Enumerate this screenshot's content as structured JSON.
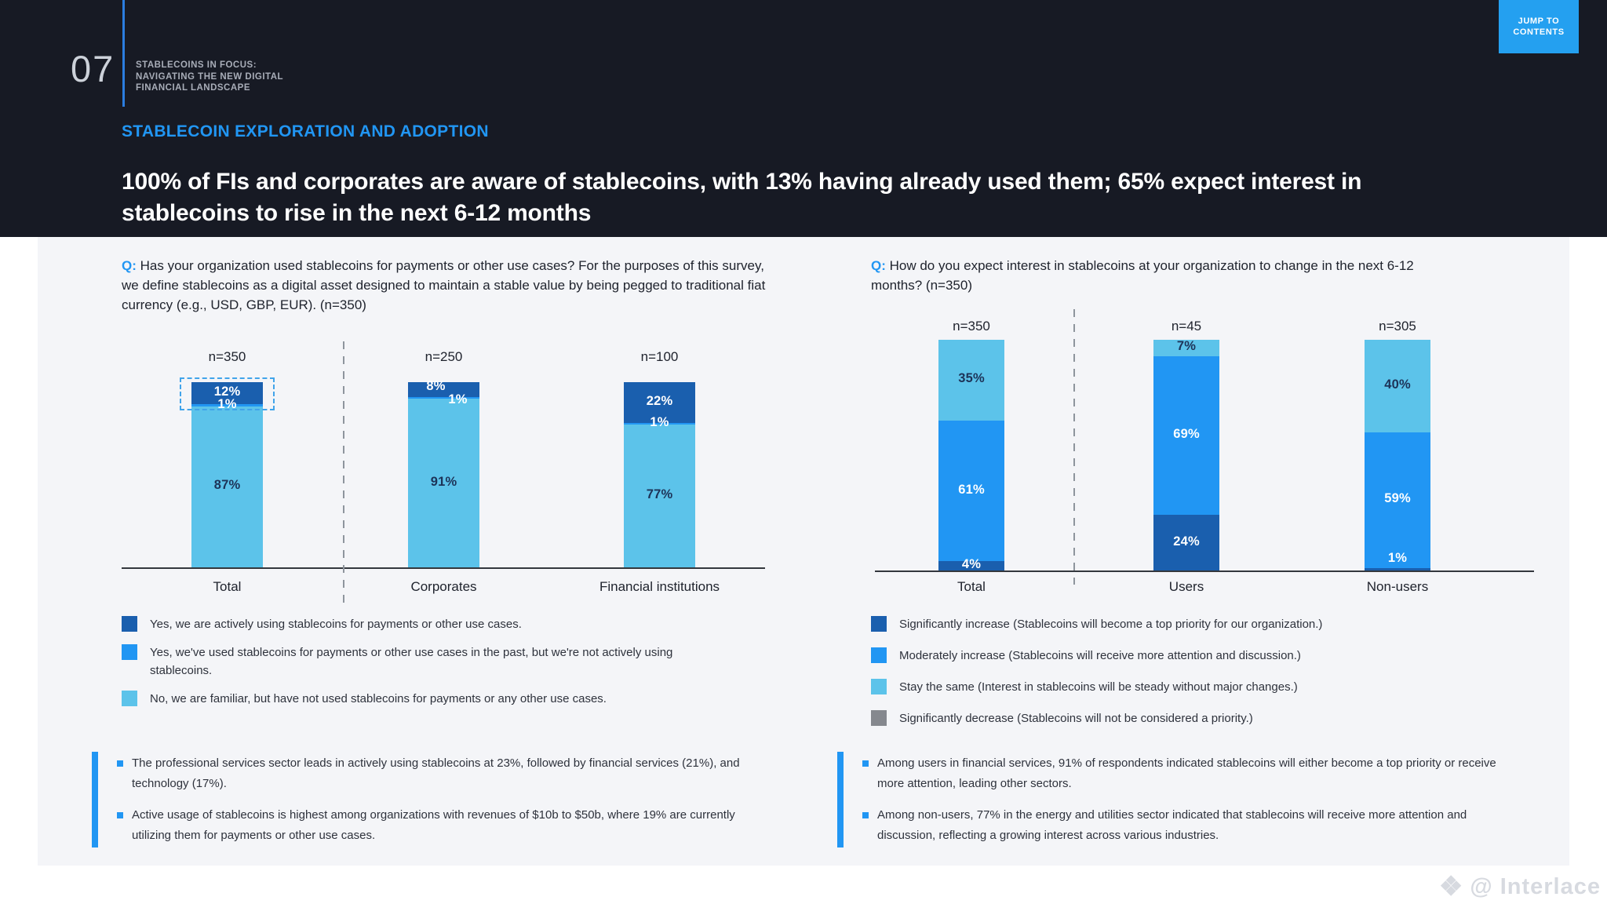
{
  "header": {
    "page_number": "07",
    "doc_title_lines": [
      "STABLECOINS IN FOCUS:",
      "NAVIGATING THE NEW DIGITAL",
      "FINANCIAL LANDSCAPE"
    ],
    "jump_button_label": "JUMP TO CONTENTS",
    "section_label": "STABLECOIN EXPLORATION AND ADOPTION",
    "title_line1": "100% of FIs and corporates are aware of stablecoins, with 13% having already used them; 65% expect interest in",
    "title_line2": "stablecoins to rise in the next 6-12 months"
  },
  "colors": {
    "header_bg": "#171a24",
    "card_bg": "#f4f5f8",
    "accent": "#2196f3",
    "rule_blue": "#2b7de0",
    "button_bg": "#24a0f0",
    "dark_blue": "#1a5fae",
    "mid_blue": "#2196f3",
    "light_blue": "#5cc3ea",
    "gray": "#85888e",
    "label_navy": "#1d3358",
    "text_dark": "#20242e",
    "text_body": "#2e323c",
    "axis": "#33373d",
    "dash": "#8e959d",
    "highlight_border": "#41a4ea",
    "watermark": "#d7dae0",
    "header_text_muted": "#a8adb8",
    "page_number_color": "#ccd1d9"
  },
  "left_panel": {
    "question_prefix": "Q:",
    "question": "Has your organization used stablecoins for payments or other use cases? For the purposes of this survey, we define stablecoins as a digital asset designed to maintain a stable value by being pegged to traditional fiat currency (e.g., USD, GBP, EUR). (n=350)",
    "legend": [
      {
        "key": "dark_blue",
        "text": "Yes, we are actively using stablecoins for payments or other use cases."
      },
      {
        "key": "mid_blue",
        "text": "Yes, we've used stablecoins for payments or other use cases in the past, but we're not actively using stablecoins."
      },
      {
        "key": "light_blue",
        "text": "No, we are familiar, but have not used stablecoins for payments or any other use cases."
      }
    ],
    "bullets": [
      "The professional services sector leads in actively using stablecoins at 23%, followed by financial services (21%), and technology (17%).",
      "Active usage of stablecoins is highest among organizations with revenues of $10b to $50b, where 19% are currently utilizing them for payments or other use cases."
    ]
  },
  "right_panel": {
    "question_prefix": "Q:",
    "question": "How do you expect interest in stablecoins at your organization to change in the next 6-12 months? (n=350)",
    "legend": [
      {
        "key": "dark_blue",
        "text": "Significantly increase (Stablecoins will become a top priority for our organization.)"
      },
      {
        "key": "mid_blue",
        "text": "Moderately increase (Stablecoins will receive more attention and discussion.)"
      },
      {
        "key": "light_blue",
        "text": "Stay the same (Interest in stablecoins will be steady without major changes.)"
      },
      {
        "key": "gray",
        "text": "Significantly decrease (Stablecoins will not be considered a priority.)"
      }
    ],
    "bullets": [
      "Among users in financial services, 91% of respondents indicated stablecoins will either become a top priority or receive more attention, leading other sectors.",
      "Among non-users, 77% in the energy and utilities sector indicated that stablecoins will receive more attention and discussion, reflecting a growing interest across various industries."
    ]
  },
  "chart_data": [
    {
      "type": "bar",
      "stacked": true,
      "categories": [
        "Total",
        "Corporates",
        "Financial institutions"
      ],
      "n_labels": [
        "n=350",
        "n=250",
        "n=100"
      ],
      "stack_order_top_to_bottom": [
        "dark_blue",
        "mid_blue",
        "light_blue"
      ],
      "unit": "%",
      "ylim": [
        0,
        100
      ],
      "series": [
        {
          "key": "dark_blue",
          "name": "Yes, we are actively using stablecoins for payments or other use cases.",
          "values": [
            12,
            8,
            22
          ]
        },
        {
          "key": "mid_blue",
          "name": "Yes, we've used stablecoins for payments or other use cases in the past, but we're not actively using stablecoins.",
          "values": [
            1,
            1,
            1
          ]
        },
        {
          "key": "light_blue",
          "name": "No, we are familiar, but have not used stablecoins for payments or any other use cases.",
          "values": [
            87,
            91,
            77
          ]
        }
      ],
      "highlighted_category": "Total"
    },
    {
      "type": "bar",
      "stacked": true,
      "categories": [
        "Total",
        "Users",
        "Non-users"
      ],
      "n_labels": [
        "n=350",
        "n=45",
        "n=305"
      ],
      "stack_order_top_to_bottom": [
        "light_blue",
        "mid_blue",
        "dark_blue"
      ],
      "unit": "%",
      "ylim": [
        0,
        100
      ],
      "series": [
        {
          "key": "dark_blue",
          "name": "Significantly increase (Stablecoins will become a top priority for our organization.)",
          "values": [
            4,
            24,
            1
          ]
        },
        {
          "key": "mid_blue",
          "name": "Moderately increase (Stablecoins will receive more attention and discussion.)",
          "values": [
            61,
            69,
            59
          ]
        },
        {
          "key": "light_blue",
          "name": "Stay the same (Interest in stablecoins will be steady without major changes.)",
          "values": [
            35,
            7,
            40
          ]
        },
        {
          "key": "gray",
          "name": "Significantly decrease (Stablecoins will not be considered a priority.)",
          "values": [
            0,
            0,
            0
          ]
        }
      ]
    }
  ],
  "watermark": {
    "text": "@ Interlace"
  }
}
